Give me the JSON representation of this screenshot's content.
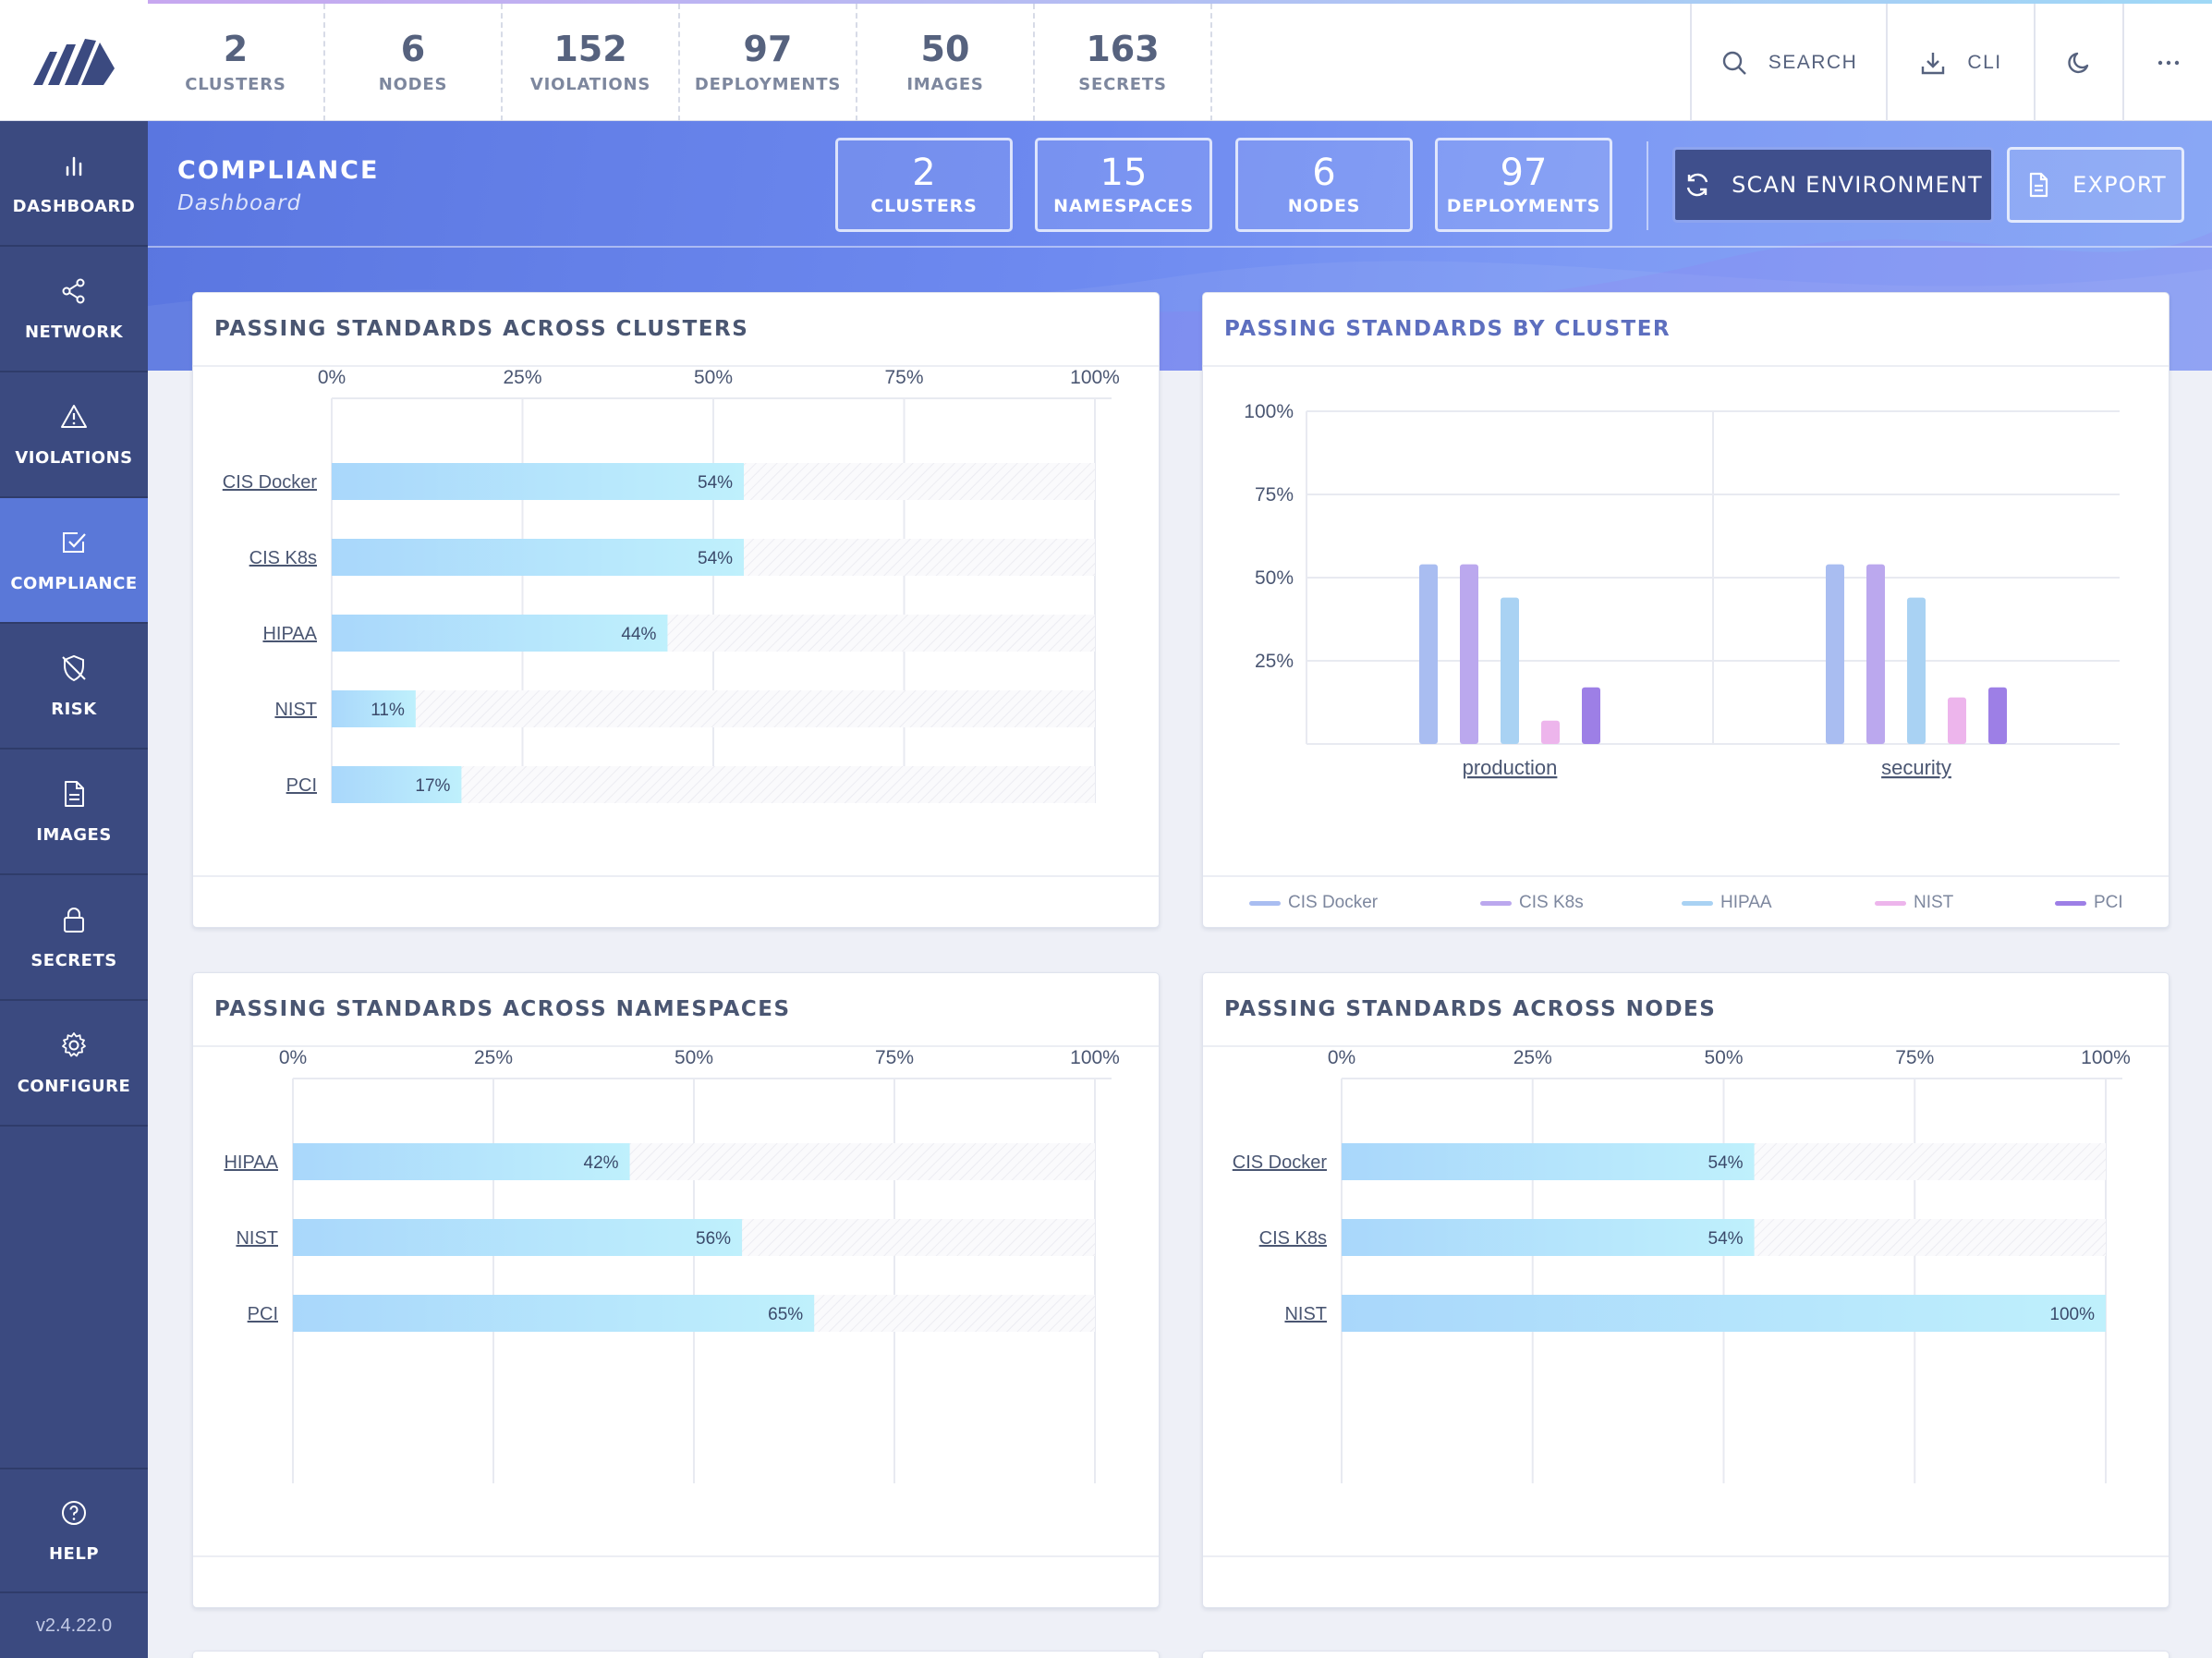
{
  "topbar": {
    "summary": [
      {
        "count": "2",
        "label": "CLUSTERS"
      },
      {
        "count": "6",
        "label": "NODES"
      },
      {
        "count": "152",
        "label": "VIOLATIONS"
      },
      {
        "count": "97",
        "label": "DEPLOYMENTS"
      },
      {
        "count": "50",
        "label": "IMAGES"
      },
      {
        "count": "163",
        "label": "SECRETS"
      }
    ],
    "search_label": "SEARCH",
    "cli_label": "CLI"
  },
  "sidebar": {
    "items": [
      {
        "label": "DASHBOARD",
        "icon": "bar-chart-icon"
      },
      {
        "label": "NETWORK",
        "icon": "share-nodes-icon"
      },
      {
        "label": "VIOLATIONS",
        "icon": "warning-triangle-icon"
      },
      {
        "label": "COMPLIANCE",
        "icon": "check-square-icon",
        "active": true
      },
      {
        "label": "RISK",
        "icon": "shield-off-icon"
      },
      {
        "label": "IMAGES",
        "icon": "file-icon"
      },
      {
        "label": "SECRETS",
        "icon": "lock-icon"
      },
      {
        "label": "CONFIGURE",
        "icon": "gear-icon"
      }
    ],
    "help_label": "HELP",
    "version": "v2.4.22.0"
  },
  "header": {
    "title": "COMPLIANCE",
    "subtitle": "Dashboard",
    "tiles": [
      {
        "count": "2",
        "label": "CLUSTERS"
      },
      {
        "count": "15",
        "label": "NAMESPACES"
      },
      {
        "count": "6",
        "label": "NODES"
      },
      {
        "count": "97",
        "label": "DEPLOYMENTS"
      }
    ],
    "scan_label": "SCAN ENVIRONMENT",
    "export_label": "EXPORT"
  },
  "colors": {
    "accent": "#5a78d8",
    "sidebar": "#3b4a80",
    "bar_start": "#a9d7fb",
    "bar_end": "#bff0fc",
    "cis_docker": "#a9bdf1",
    "cis_k8s": "#bba8ee",
    "hipaa": "#a9d2f3",
    "nist": "#edb5ec",
    "pci": "#9d7fe6"
  },
  "cards": {
    "clusters_title": "PASSING STANDARDS ACROSS CLUSTERS",
    "by_cluster_title": "PASSING STANDARDS BY CLUSTER",
    "namespaces_title": "PASSING STANDARDS ACROSS NAMESPACES",
    "nodes_title": "PASSING STANDARDS ACROSS NODES"
  },
  "chart_data": [
    {
      "type": "bar",
      "orientation": "horizontal",
      "title": "PASSING STANDARDS ACROSS CLUSTERS",
      "categories": [
        "CIS Docker",
        "CIS K8s",
        "HIPAA",
        "NIST",
        "PCI"
      ],
      "values": [
        54,
        54,
        44,
        11,
        17
      ],
      "value_labels": [
        "54%",
        "54%",
        "44%",
        "11%",
        "17%"
      ],
      "xticks": [
        "0%",
        "25%",
        "50%",
        "75%",
        "100%"
      ],
      "xlim": [
        0,
        100
      ]
    },
    {
      "type": "bar",
      "orientation": "vertical",
      "title": "PASSING STANDARDS BY CLUSTER",
      "categories": [
        "production",
        "security"
      ],
      "series": [
        {
          "name": "CIS Docker",
          "values": [
            54,
            54
          ]
        },
        {
          "name": "CIS K8s",
          "values": [
            54,
            54
          ]
        },
        {
          "name": "HIPAA",
          "values": [
            44,
            44
          ]
        },
        {
          "name": "NIST",
          "values": [
            7,
            14
          ]
        },
        {
          "name": "PCI",
          "values": [
            17,
            17
          ]
        }
      ],
      "yticks": [
        "100%",
        "75%",
        "50%",
        "25%"
      ],
      "ylim": [
        0,
        100
      ],
      "legend": "bottom"
    },
    {
      "type": "bar",
      "orientation": "horizontal",
      "title": "PASSING STANDARDS ACROSS NAMESPACES",
      "categories": [
        "HIPAA",
        "NIST",
        "PCI"
      ],
      "values": [
        42,
        56,
        65
      ],
      "value_labels": [
        "42%",
        "56%",
        "65%"
      ],
      "xticks": [
        "0%",
        "25%",
        "50%",
        "75%",
        "100%"
      ],
      "xlim": [
        0,
        100
      ]
    },
    {
      "type": "bar",
      "orientation": "horizontal",
      "title": "PASSING STANDARDS ACROSS NODES",
      "categories": [
        "CIS Docker",
        "CIS K8s",
        "NIST"
      ],
      "values": [
        54,
        54,
        100
      ],
      "value_labels": [
        "54%",
        "54%",
        "100%"
      ],
      "xticks": [
        "0%",
        "25%",
        "50%",
        "75%",
        "100%"
      ],
      "xlim": [
        0,
        100
      ]
    }
  ]
}
